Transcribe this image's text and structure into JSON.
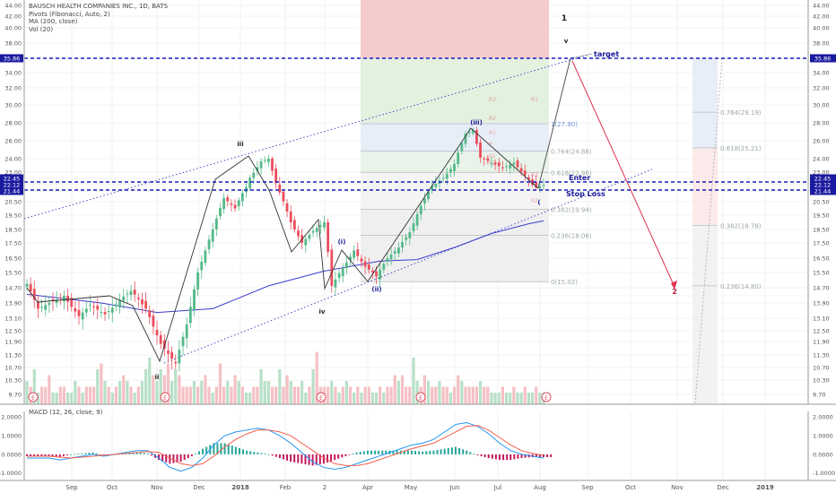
{
  "legend": {
    "title": "BAUSCH HEALTH COMPANIES INC., 1D, BATS",
    "pivots": "Pivots (Fibonacci, Auto, 2)",
    "ma": "MA (200, close)",
    "vol": "Vol (20)"
  },
  "macd_label": "MACD (12, 26, close, 9)",
  "chart_data": {
    "type": "line",
    "ylim": [
      9.0,
      44.0
    ],
    "price_ticks": [
      "44.00",
      "42.00",
      "40.00",
      "38.00",
      "35.86",
      "34.00",
      "32.00",
      "30.00",
      "28.00",
      "26.00",
      "24.00",
      "23.00",
      "22.45",
      "22.12",
      "21.44",
      "20.50",
      "19.50",
      "18.50",
      "17.50",
      "16.50",
      "15.50",
      "14.70",
      "13.90",
      "13.10",
      "12.50",
      "11.90",
      "11.30",
      "10.70",
      "10.30",
      "9.70"
    ],
    "highlight_ticks": [
      {
        "label": "35.86",
        "value": 35.86,
        "color": "#1a1aa0"
      },
      {
        "label": "22.45",
        "value": 22.45,
        "color": "#1a1aa0"
      },
      {
        "label": "22.12",
        "value": 22.12,
        "color": "#1a1aa0"
      },
      {
        "label": "21.44",
        "value": 21.44,
        "color": "#1a1aa0"
      }
    ],
    "time_labels": [
      "Sep",
      "Oct",
      "Nov",
      "Dec",
      "2018",
      "Feb",
      "2",
      "Apr",
      "May",
      "Jun",
      "Jul",
      "Aug",
      "Sep",
      "Oct",
      "Nov",
      "Dec",
      "2019"
    ],
    "macd_ticks": [
      "2.0000",
      "1.0000",
      "0.0000",
      "-1.0000"
    ],
    "macd_ylim": [
      -1.4,
      2.3
    ],
    "wave_labels": [
      "1",
      "v",
      "iii",
      "iv",
      "ii",
      "(i)",
      "(ii)",
      "(iii)",
      "(",
      "2"
    ],
    "annotations": [
      "target",
      "Enter",
      "Stop Loss"
    ],
    "fib_levels": [
      {
        "label": "0.764(24.86)",
        "value": 24.86
      },
      {
        "label": "0.618(22.98)",
        "value": 22.98
      },
      {
        "label": "0.382(19.94)",
        "value": 19.94
      },
      {
        "label": "0.236(18.06)",
        "value": 18.06
      },
      {
        "label": "0(15.02)",
        "value": 15.02
      },
      {
        "label": "1(27.90)",
        "value": 27.9
      }
    ],
    "fib_right_levels": [
      {
        "label": "0.764(29.19)",
        "value": 29.19
      },
      {
        "label": "0.618(25.21)",
        "value": 25.21
      },
      {
        "label": "0.382(18.78)",
        "value": 18.78
      },
      {
        "label": "0.236(14.80)",
        "value": 14.8
      }
    ],
    "pivot_labels": [
      "R3",
      "R2",
      "R1",
      "P",
      "S1",
      "S2",
      "R3",
      "R2",
      "R1"
    ],
    "price_path": [
      {
        "x": 0,
        "y": 14.9
      },
      {
        "x": 3,
        "y": 13.6
      },
      {
        "x": 6,
        "y": 13.9
      },
      {
        "x": 10,
        "y": 14.2
      },
      {
        "x": 14,
        "y": 13.2
      },
      {
        "x": 17,
        "y": 13.8
      },
      {
        "x": 21,
        "y": 13.3
      },
      {
        "x": 25,
        "y": 14.0
      },
      {
        "x": 28,
        "y": 14.5
      },
      {
        "x": 32,
        "y": 13.6
      },
      {
        "x": 36,
        "y": 11.8
      },
      {
        "x": 40,
        "y": 10.9
      },
      {
        "x": 43,
        "y": 12.8
      },
      {
        "x": 46,
        "y": 15.5
      },
      {
        "x": 50,
        "y": 18.5
      },
      {
        "x": 53,
        "y": 20.8
      },
      {
        "x": 56,
        "y": 20.0
      },
      {
        "x": 60,
        "y": 22.5
      },
      {
        "x": 63,
        "y": 23.8
      },
      {
        "x": 65,
        "y": 24.0
      },
      {
        "x": 68,
        "y": 21.3
      },
      {
        "x": 71,
        "y": 19.0
      },
      {
        "x": 74,
        "y": 17.5
      },
      {
        "x": 77,
        "y": 18.4
      },
      {
        "x": 80,
        "y": 19.0
      },
      {
        "x": 82,
        "y": 14.8
      },
      {
        "x": 85,
        "y": 15.8
      },
      {
        "x": 88,
        "y": 17.0
      },
      {
        "x": 91,
        "y": 15.9
      },
      {
        "x": 94,
        "y": 15.3
      },
      {
        "x": 97,
        "y": 16.5
      },
      {
        "x": 100,
        "y": 17.2
      },
      {
        "x": 103,
        "y": 18.3
      },
      {
        "x": 106,
        "y": 20.2
      },
      {
        "x": 109,
        "y": 22.0
      },
      {
        "x": 112,
        "y": 22.5
      },
      {
        "x": 115,
        "y": 23.6
      },
      {
        "x": 118,
        "y": 26.8
      },
      {
        "x": 120,
        "y": 27.2
      },
      {
        "x": 122,
        "y": 24.1
      },
      {
        "x": 125,
        "y": 23.7
      },
      {
        "x": 128,
        "y": 23.3
      },
      {
        "x": 131,
        "y": 23.7
      },
      {
        "x": 134,
        "y": 22.7
      },
      {
        "x": 137,
        "y": 21.8
      },
      {
        "x": 139,
        "y": 22.1
      }
    ],
    "ma_path": [
      {
        "x": 0,
        "y": 14.3
      },
      {
        "x": 20,
        "y": 13.9
      },
      {
        "x": 35,
        "y": 13.4
      },
      {
        "x": 50,
        "y": 13.6
      },
      {
        "x": 65,
        "y": 14.8
      },
      {
        "x": 80,
        "y": 15.6
      },
      {
        "x": 95,
        "y": 16.3
      },
      {
        "x": 105,
        "y": 16.4
      },
      {
        "x": 115,
        "y": 17.2
      },
      {
        "x": 125,
        "y": 18.2
      },
      {
        "x": 135,
        "y": 18.9
      },
      {
        "x": 139,
        "y": 19.1
      }
    ],
    "projection": [
      {
        "x": 139,
        "y": 22.1
      },
      {
        "x": 146,
        "y": 35.6
      },
      {
        "x": 164,
        "y": 14.8
      }
    ],
    "volume": [
      4,
      3,
      6,
      2,
      3,
      3,
      5,
      2,
      2,
      3,
      3,
      2,
      2,
      4,
      3,
      2,
      3,
      3,
      3,
      6,
      7,
      4,
      3,
      2,
      3,
      4,
      5,
      4,
      3,
      2,
      3,
      4,
      6,
      8,
      5,
      4,
      6,
      5,
      7,
      4,
      6,
      5,
      3,
      3,
      3,
      4,
      3,
      4,
      5,
      3,
      2,
      3,
      7,
      3,
      4,
      3,
      5,
      4,
      3,
      2,
      2,
      3,
      3,
      6,
      4,
      4,
      3,
      3,
      6,
      3,
      5,
      4,
      3,
      3,
      4,
      2,
      3,
      6,
      9,
      3,
      3,
      3,
      4,
      3,
      2,
      3,
      4,
      3,
      2,
      3,
      2,
      3,
      3,
      2,
      2,
      3,
      2,
      3,
      3,
      5,
      4,
      5,
      3,
      3,
      8,
      4,
      3,
      5,
      4,
      3,
      3,
      4,
      3,
      3,
      2,
      3,
      5,
      4,
      3,
      3,
      3,
      3,
      4,
      3,
      3,
      2,
      2,
      2,
      3,
      2,
      2,
      3,
      2,
      2,
      3,
      2,
      2,
      3,
      2,
      2
    ],
    "macd_line": [
      -0.2,
      -0.2,
      -0.2,
      -0.3,
      -0.2,
      -0.1,
      0.0,
      -0.1,
      0.0,
      0.1,
      0.2,
      0.2,
      -0.2,
      -0.7,
      -0.9,
      -0.7,
      -0.2,
      0.5,
      1.0,
      1.2,
      1.3,
      1.4,
      1.3,
      1.0,
      0.6,
      0.1,
      -0.4,
      -0.7,
      -0.8,
      -0.7,
      -0.5,
      -0.3,
      -0.1,
      0.1,
      0.3,
      0.5,
      0.6,
      0.8,
      1.2,
      1.6,
      1.7,
      1.5,
      1.1,
      0.6,
      0.2,
      0.0,
      -0.1,
      -0.2
    ],
    "signal_line": [
      -0.1,
      -0.1,
      -0.1,
      -0.15,
      -0.2,
      -0.15,
      -0.1,
      -0.05,
      0.0,
      0.05,
      0.1,
      0.15,
      0.1,
      -0.2,
      -0.5,
      -0.6,
      -0.5,
      -0.1,
      0.4,
      0.8,
      1.1,
      1.3,
      1.3,
      1.2,
      1.0,
      0.6,
      0.2,
      -0.2,
      -0.5,
      -0.6,
      -0.6,
      -0.5,
      -0.3,
      -0.1,
      0.1,
      0.3,
      0.45,
      0.6,
      0.9,
      1.2,
      1.5,
      1.55,
      1.3,
      0.9,
      0.5,
      0.2,
      0.05,
      -0.05
    ],
    "colors": {
      "up": "#53b987",
      "down": "#eb4d5c",
      "ma": "#3b3bd0",
      "blue_dash": "#1a1ac0",
      "macd": "#2196f3",
      "signal": "#f1604d",
      "channel": "#4848c8"
    }
  }
}
